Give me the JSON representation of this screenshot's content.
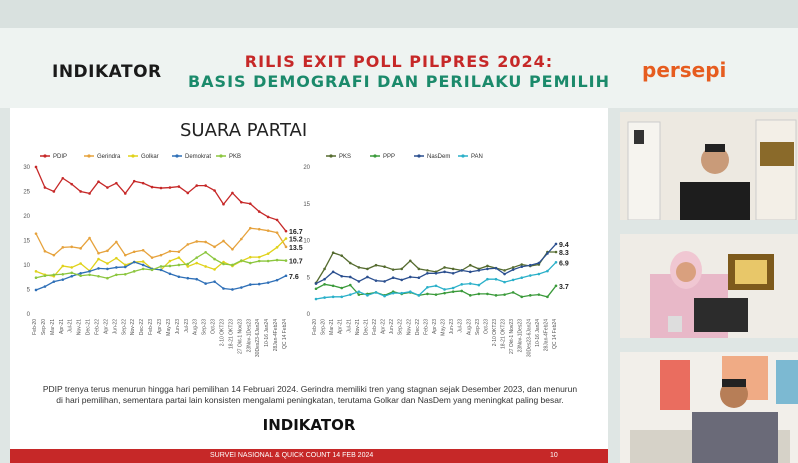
{
  "header": {
    "logo_left": "INDIKATOR",
    "title_line1": "RILIS EXIT POLL PILPRES 2024:",
    "title_line2": "BASIS DEMOGRAFI DAN PERILAKU PEMILIH",
    "logo_right": "persepi"
  },
  "slide": {
    "title": "SUARA PARTAI",
    "description": "PDIP trenya terus menurun hingga hari pemilihan 14 Februari 2024. Gerindra memiliki tren yang stagnan sejak Desember 2023, dan menurun di hari pemilihan, sementara partai lain konsisten mengalami peningkatan, terutama Golkar dan NasDem yang meningkat paling besar.",
    "logo": "INDIKATOR",
    "footer_text": "SURVEI NASIONAL & QUICK COUNT 14 FEB 2024",
    "page_number": "10"
  },
  "chart_data": [
    {
      "type": "line",
      "x": [
        "Feb-20",
        "Sep-20",
        "Mar-21",
        "Apr-21",
        "Jul-21",
        "Nov-21",
        "Dec-21",
        "Feb-22",
        "Apr-22",
        "Jun-22",
        "Sep-22",
        "Nov-22",
        "Dec-22",
        "Feb-23",
        "Apr-23",
        "May-23",
        "Jun-23",
        "Jul-23",
        "Aug-23",
        "Sep-23",
        "Oct-23",
        "2-10 OKT23",
        "18-21 OKT23",
        "27 Okt-1 Nov23",
        "23Nov-1Des23",
        "30Des23-6Jan24",
        "10-16 Jan24",
        "28Jan-4Feb24",
        "QC 14 Feb24"
      ],
      "ylim": [
        0,
        30
      ],
      "yticks": [
        0,
        5,
        10,
        15,
        20,
        25,
        30
      ],
      "series": [
        {
          "name": "PDIP",
          "color": "#c62828",
          "values": [
            29.8,
            25.6,
            24.8,
            27.5,
            26.3,
            24.8,
            24.4,
            26.8,
            25.6,
            26.5,
            24.4,
            26.9,
            26.5,
            25.7,
            25.5,
            25.6,
            25.8,
            24.5,
            26.0,
            26.0,
            25.0,
            22.2,
            24.5,
            22.6,
            22.3,
            20.7,
            19.6,
            19.0,
            16.7
          ]
        },
        {
          "name": "Gerindra",
          "color": "#e6a23c",
          "values": [
            16.2,
            12.6,
            11.8,
            13.4,
            13.5,
            13.2,
            15.3,
            12.2,
            12.7,
            14.5,
            11.8,
            12.5,
            12.8,
            11.3,
            11.8,
            12.6,
            12.5,
            14.0,
            14.6,
            14.5,
            13.5,
            14.7,
            13.0,
            15.1,
            17.3,
            17.1,
            16.8,
            16.4,
            13.5
          ]
        },
        {
          "name": "Golkar",
          "color": "#e0d21a",
          "values": [
            8.5,
            7.8,
            7.5,
            9.6,
            9.3,
            10.1,
            8.6,
            11.0,
            10.1,
            11.2,
            9.8,
            10.4,
            10.5,
            9.0,
            8.8,
            10.6,
            11.3,
            9.5,
            10.2,
            9.5,
            8.9,
            10.4,
            9.6,
            10.6,
            11.4,
            11.4,
            12.1,
            13.4,
            15.2
          ]
        },
        {
          "name": "Demokrat",
          "color": "#2e6fb7",
          "values": [
            4.7,
            5.4,
            6.4,
            6.8,
            7.5,
            8.1,
            8.5,
            9.1,
            9.0,
            9.3,
            9.4,
            10.4,
            9.8,
            9.0,
            8.8,
            8.0,
            7.4,
            7.1,
            6.9,
            6.0,
            6.4,
            5.0,
            4.8,
            5.2,
            5.8,
            5.9,
            6.2,
            6.7,
            7.6
          ]
        },
        {
          "name": "PKB",
          "color": "#8cc63f",
          "values": [
            7.2,
            7.6,
            7.8,
            7.9,
            8.2,
            7.6,
            7.8,
            7.5,
            7.1,
            7.8,
            7.9,
            8.5,
            9.0,
            8.8,
            9.5,
            9.6,
            9.8,
            10.0,
            11.3,
            12.4,
            11.0,
            10.0,
            9.8,
            10.7,
            10.2,
            10.6,
            10.6,
            10.8,
            10.7
          ]
        }
      ],
      "end_labels": [
        "16.7",
        "15.2",
        "13.5",
        "10.7",
        "7.6"
      ]
    },
    {
      "type": "line",
      "x": [
        "Feb-20",
        "Sep-20",
        "Mar-21",
        "Apr-21",
        "Jul-21",
        "Nov-21",
        "Dec-21",
        "Feb-22",
        "Apr-22",
        "Jun-22",
        "Sep-22",
        "Nov-22",
        "Dec-22",
        "Feb-23",
        "Apr-23",
        "May-23",
        "Jun-23",
        "Jul-23",
        "Aug-23",
        "Sep-23",
        "Oct-23",
        "2-10 OKT23",
        "18-21 OKT23",
        "27 Okt-1 Nov23",
        "23Nov-1Des23",
        "30Des23-6Jan24",
        "10-16 Jan24",
        "28Jan-4Feb24",
        "QC 14 Feb24"
      ],
      "ylim": [
        0,
        20
      ],
      "yticks": [
        0,
        5,
        10,
        15,
        20
      ],
      "series": [
        {
          "name": "PKS",
          "color": "#556b2f",
          "values": [
            4.1,
            6.0,
            8.2,
            7.8,
            6.8,
            6.2,
            6.0,
            6.5,
            6.3,
            5.9,
            6.0,
            7.1,
            6.0,
            5.8,
            5.6,
            6.2,
            6.0,
            5.8,
            6.5,
            6.0,
            6.4,
            6.1,
            5.8,
            6.2,
            6.6,
            6.4,
            6.6,
            8.3,
            8.3
          ]
        },
        {
          "name": "PPP",
          "color": "#3a9a3a",
          "values": [
            3.3,
            3.9,
            3.7,
            3.4,
            3.8,
            2.5,
            2.6,
            2.8,
            2.4,
            2.9,
            2.6,
            2.8,
            2.4,
            2.6,
            2.5,
            2.7,
            2.9,
            3.0,
            2.4,
            2.6,
            2.6,
            2.4,
            2.5,
            2.8,
            2.2,
            2.4,
            2.5,
            2.2,
            3.7
          ]
        },
        {
          "name": "NasDem",
          "color": "#2b4f8f",
          "values": [
            4.0,
            4.6,
            5.6,
            5.0,
            4.9,
            4.3,
            4.9,
            4.4,
            4.3,
            4.8,
            4.5,
            4.9,
            4.8,
            5.4,
            5.4,
            5.6,
            5.4,
            5.8,
            5.6,
            5.8,
            6.0,
            6.1,
            5.3,
            5.9,
            6.3,
            6.5,
            6.8,
            8.1,
            9.4
          ]
        },
        {
          "name": "PAN",
          "color": "#2ab0c9",
          "values": [
            1.9,
            2.1,
            2.2,
            2.2,
            2.5,
            2.9,
            2.4,
            2.8,
            2.3,
            2.7,
            2.7,
            2.9,
            2.4,
            3.5,
            3.7,
            3.2,
            3.4,
            3.9,
            4.0,
            3.8,
            4.6,
            4.6,
            4.2,
            4.5,
            4.8,
            5.1,
            5.3,
            5.7,
            6.9
          ]
        }
      ],
      "end_labels": [
        "9.4",
        "8.3",
        "6.9",
        "3.7"
      ]
    }
  ],
  "videos": [
    {
      "label": "speaker-1"
    },
    {
      "label": "speaker-2"
    },
    {
      "label": "speaker-3"
    }
  ]
}
